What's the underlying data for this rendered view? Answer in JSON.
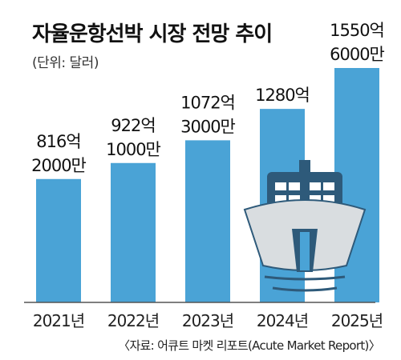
{
  "title": "자율운항선박 시장 전망 추이",
  "unit": "(단위: 달러)",
  "source": "〈자료: 어큐트 마켓 리포트(Acute Market Report)〉",
  "colors": {
    "bar": "#4aa3d6",
    "axis": "#555555",
    "ship_hull": "#d9dde0",
    "ship_dark": "#2e5a7a"
  },
  "chart_data": {
    "type": "bar",
    "title": "자율운항선박 시장 전망 추이",
    "ylabel": "(단위: 달러)",
    "categories": [
      "2021년",
      "2022년",
      "2023년",
      "2024년",
      "2025년"
    ],
    "values": [
      81620000000,
      92210000000,
      107230000000,
      128000000000,
      155060000000
    ],
    "data_labels": [
      [
        "816억",
        "2000만"
      ],
      [
        "922억",
        "1000만"
      ],
      [
        "1072억",
        "3000만"
      ],
      [
        "1280억"
      ],
      [
        "1550억",
        "6000만"
      ]
    ],
    "ylim": [
      0,
      155060000000
    ],
    "grid": false,
    "legend": "none"
  }
}
